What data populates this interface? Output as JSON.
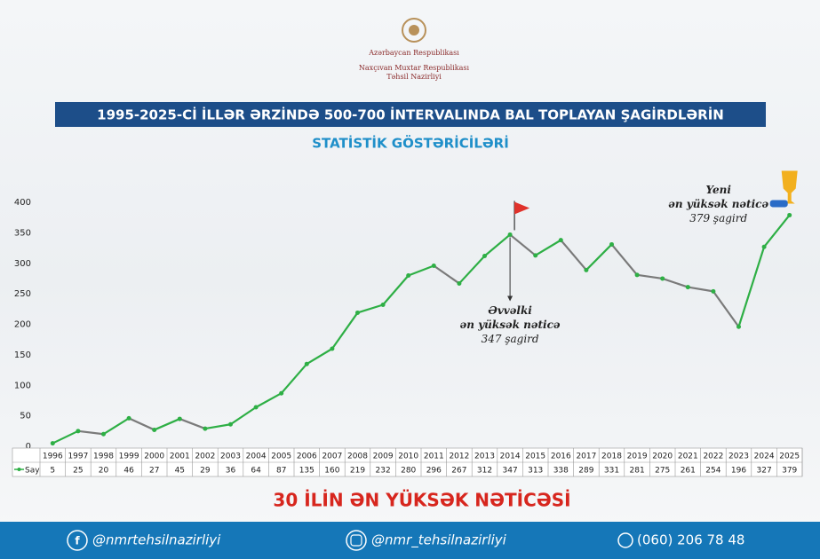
{
  "header": {
    "org_lines": [
      "Azərbaycan Respublikası",
      "Naxçıvan Muxtar Respublikası",
      "Təhsil Nazirliyi"
    ]
  },
  "chart_data": {
    "type": "line",
    "title": "1995-2025-Cİ İLLƏR ƏRZİNDƏ 500-700 İNTERVALINDA BAL TOPLAYAN ŞAGİRDLƏRİN",
    "subtitle": "STATİSTİK GÖSTƏRİCİLƏRİ",
    "categories": [
      "1996",
      "1997",
      "1998",
      "1999",
      "2000",
      "2001",
      "2002",
      "2003",
      "2004",
      "2005",
      "2006",
      "2007",
      "2008",
      "2009",
      "2010",
      "2011",
      "2012",
      "2013",
      "2014",
      "2015",
      "2016",
      "2017",
      "2018",
      "2019",
      "2020",
      "2021",
      "2022",
      "2023",
      "2024",
      "2025"
    ],
    "series": [
      {
        "name": "Say",
        "color": "#2eaf45",
        "decrease_color": "#7a7a7a",
        "values": [
          5,
          25,
          20,
          46,
          27,
          45,
          29,
          36,
          64,
          87,
          135,
          160,
          219,
          232,
          280,
          296,
          267,
          312,
          347,
          313,
          338,
          289,
          331,
          281,
          275,
          261,
          254,
          196,
          327,
          379
        ]
      }
    ],
    "ylim": [
      0,
      400
    ],
    "yticks": [
      0,
      50,
      100,
      150,
      200,
      250,
      300,
      350,
      400
    ],
    "annotations": [
      {
        "lines": [
          "Əvvəlki",
          "ən yüksək nəticə",
          "347 şagird"
        ]
      },
      {
        "lines": [
          "Yeni",
          "ən yüksək nəticə",
          "379 şagird"
        ]
      }
    ],
    "highlight": "30 İLİN ƏN YÜKSƏK NƏTİCƏSİ"
  },
  "footer": {
    "facebook": "@nmrtehsilnazirliyi",
    "instagram": "@nmr_tehsilnazirliyi",
    "phone": "(060) 206 78 48"
  }
}
